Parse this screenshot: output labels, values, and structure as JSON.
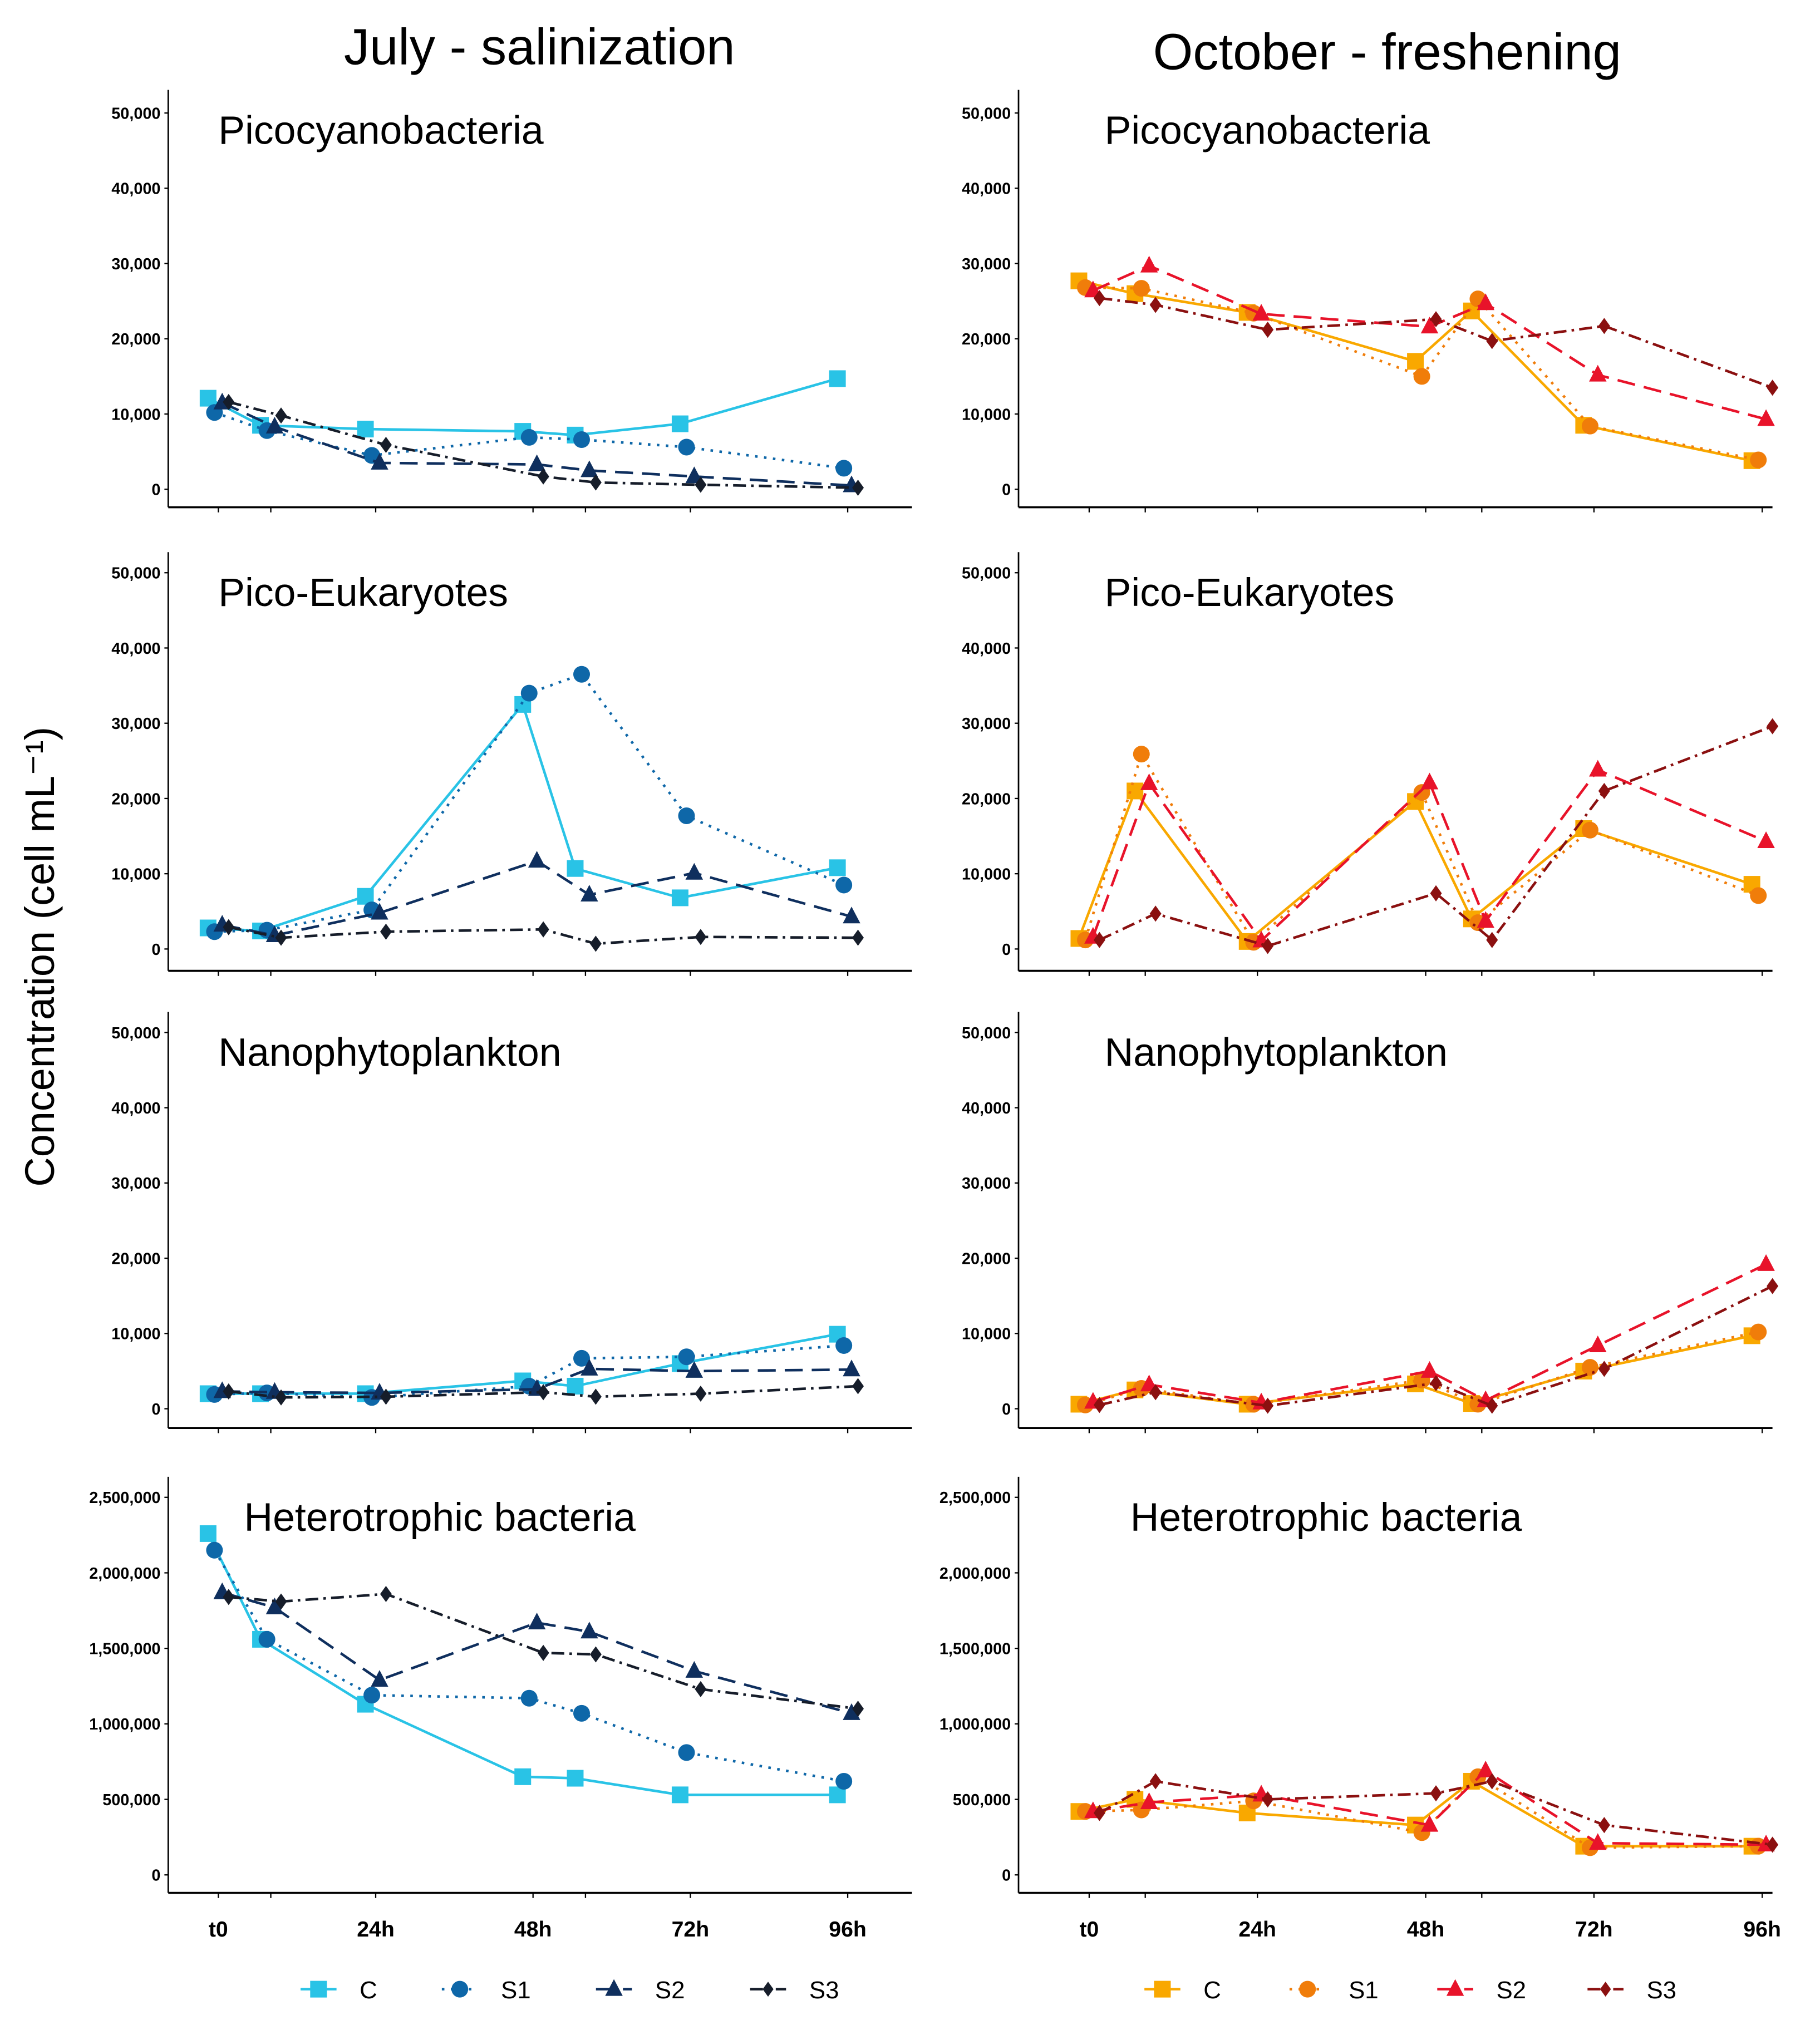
{
  "chart_data": {
    "type": "line",
    "ylabel": "Concentration (cell mL⁻¹)",
    "x": [
      0,
      8,
      24,
      48,
      56,
      72,
      96
    ],
    "xtick_values": [
      0,
      24,
      48,
      72,
      96
    ],
    "xtick_labels": [
      "t0",
      "24h",
      "48h",
      "72h",
      "96h"
    ],
    "legend_labels": [
      "C",
      "S1",
      "S2",
      "S3"
    ],
    "columns": [
      {
        "title": "July - salinization",
        "colors": [
          "#29c3e6",
          "#0e67a8",
          "#0f2f5e",
          "#161d2a"
        ],
        "panels": [
          {
            "title": "Picocyanobacteria",
            "ylim": [
              0,
              50000
            ],
            "yticks": [
              "0",
              "10,000",
              "20,000",
              "30,000",
              "40,000",
              "50,000"
            ],
            "series": [
              {
                "name": "C",
                "values": [
                  12100,
                  8500,
                  8000,
                  7700,
                  7200,
                  8700,
                  14700
                ]
              },
              {
                "name": "S1",
                "values": [
                  10200,
                  7800,
                  4500,
                  6900,
                  6600,
                  5600,
                  2800
                ]
              },
              {
                "name": "S2",
                "values": [
                  11500,
                  8300,
                  3500,
                  3300,
                  2500,
                  1700,
                  500
                ]
              },
              {
                "name": "S3",
                "values": [
                  11600,
                  9800,
                  5900,
                  1700,
                  900,
                  600,
                  200
                ]
              }
            ]
          },
          {
            "title": "Pico-Eukaryotes",
            "ylim": [
              0,
              50000
            ],
            "yticks": [
              "0",
              "10,000",
              "20,000",
              "30,000",
              "40,000",
              "50,000"
            ],
            "series": [
              {
                "name": "C",
                "values": [
                  2800,
                  2400,
                  7000,
                  32500,
                  10700,
                  6800,
                  10800
                ]
              },
              {
                "name": "S1",
                "values": [
                  2300,
                  2500,
                  5200,
                  34000,
                  36500,
                  17700,
                  8500
                ]
              },
              {
                "name": "S2",
                "values": [
                  3200,
                  1800,
                  4800,
                  11700,
                  7200,
                  10100,
                  4300
                ]
              },
              {
                "name": "S3",
                "values": [
                  2900,
                  1500,
                  2300,
                  2600,
                  700,
                  1600,
                  1500
                ]
              }
            ]
          },
          {
            "title": "Nanophytoplankton",
            "ylim": [
              0,
              50000
            ],
            "yticks": [
              "0",
              "10,000",
              "20,000",
              "30,000",
              "40,000",
              "50,000"
            ],
            "series": [
              {
                "name": "C",
                "values": [
                  2000,
                  2000,
                  2000,
                  3700,
                  3000,
                  6000,
                  9900
                ]
              },
              {
                "name": "S1",
                "values": [
                  1900,
                  2100,
                  1500,
                  3000,
                  6700,
                  6900,
                  8400
                ]
              },
              {
                "name": "S2",
                "values": [
                  2300,
                  2200,
                  2100,
                  2600,
                  5300,
                  5000,
                  5200
                ]
              },
              {
                "name": "S3",
                "values": [
                  2300,
                  1500,
                  1600,
                  2200,
                  1600,
                  2000,
                  3000
                ]
              }
            ]
          },
          {
            "title": "Heterotrophic bacteria",
            "ylim": [
              0,
              2500000
            ],
            "yticks": [
              "0",
              "500,000",
              "1,000,000",
              "1,500,000",
              "2,000,000",
              "2,500,000"
            ],
            "series": [
              {
                "name": "C",
                "values": [
                  2260000,
                  1560000,
                  1130000,
                  650000,
                  640000,
                  530000,
                  530000
                ]
              },
              {
                "name": "S1",
                "values": [
                  2150000,
                  1560000,
                  1190000,
                  1170000,
                  1070000,
                  810000,
                  620000
                ]
              },
              {
                "name": "S2",
                "values": [
                  1870000,
                  1770000,
                  1290000,
                  1670000,
                  1610000,
                  1350000,
                  1070000
                ]
              },
              {
                "name": "S3",
                "values": [
                  1840000,
                  1810000,
                  1860000,
                  1470000,
                  1460000,
                  1230000,
                  1100000
                ]
              }
            ]
          }
        ]
      },
      {
        "title": "October - freshening",
        "colors": [
          "#f9a800",
          "#f07d0a",
          "#e8132a",
          "#8b1010"
        ],
        "panels": [
          {
            "title": "Picocyanobacteria",
            "ylim": [
              0,
              50000
            ],
            "yticks": [
              "0",
              "10,000",
              "20,000",
              "30,000",
              "40,000",
              "50,000"
            ],
            "series": [
              {
                "name": "C",
                "values": [
                  27700,
                  26000,
                  23500,
                  17000,
                  23700,
                  8500,
                  3800
                ]
              },
              {
                "name": "S1",
                "values": [
                  26800,
                  26700,
                  23400,
                  15000,
                  25300,
                  8400,
                  3900
                ]
              },
              {
                "name": "S2",
                "values": [
                  26400,
                  29700,
                  23300,
                  21600,
                  24700,
                  15200,
                  9300
                ]
              },
              {
                "name": "S3",
                "values": [
                  25400,
                  24500,
                  21200,
                  22600,
                  19700,
                  21700,
                  13500
                ]
              }
            ]
          },
          {
            "title": "Pico-Eukaryotes",
            "ylim": [
              0,
              50000
            ],
            "yticks": [
              "0",
              "10,000",
              "20,000",
              "30,000",
              "40,000",
              "50,000"
            ],
            "series": [
              {
                "name": "C",
                "values": [
                  1400,
                  21000,
                  1000,
                  19600,
                  4000,
                  16000,
                  8600
                ]
              },
              {
                "name": "S1",
                "values": [
                  1200,
                  25900,
                  900,
                  20800,
                  3500,
                  15800,
                  7100
                ]
              },
              {
                "name": "S2",
                "values": [
                  1600,
                  22000,
                  1100,
                  22100,
                  3700,
                  23800,
                  14300
                ]
              },
              {
                "name": "S3",
                "values": [
                  1200,
                  4700,
                  400,
                  7400,
                  1200,
                  21000,
                  29600
                ]
              }
            ]
          },
          {
            "title": "Nanophytoplankton",
            "ylim": [
              0,
              50000
            ],
            "yticks": [
              "0",
              "10,000",
              "20,000",
              "30,000",
              "40,000",
              "50,000"
            ],
            "series": [
              {
                "name": "C",
                "values": [
                  600,
                  2500,
                  600,
                  3300,
                  700,
                  5000,
                  9700
                ]
              },
              {
                "name": "S1",
                "values": [
                  500,
                  2700,
                  600,
                  3800,
                  600,
                  5500,
                  10200
                ]
              },
              {
                "name": "S2",
                "values": [
                  900,
                  3200,
                  800,
                  5000,
                  1100,
                  8400,
                  19200
                ]
              },
              {
                "name": "S3",
                "values": [
                  500,
                  2200,
                  400,
                  3400,
                  400,
                  5300,
                  16300
                ]
              }
            ]
          },
          {
            "title": "Heterotrophic bacteria",
            "ylim": [
              0,
              2500000
            ],
            "yticks": [
              "0",
              "500,000",
              "1,000,000",
              "1,500,000",
              "2,000,000",
              "2,500,000"
            ],
            "series": [
              {
                "name": "C",
                "values": [
                  420000,
                  500000,
                  410000,
                  330000,
                  620000,
                  190000,
                  190000
                ]
              },
              {
                "name": "S1",
                "values": [
                  420000,
                  430000,
                  490000,
                  280000,
                  650000,
                  180000,
                  190000
                ]
              },
              {
                "name": "S2",
                "values": [
                  420000,
                  480000,
                  530000,
                  330000,
                  690000,
                  210000,
                  200000
                ]
              },
              {
                "name": "S3",
                "values": [
                  410000,
                  620000,
                  500000,
                  540000,
                  620000,
                  330000,
                  200000
                ]
              }
            ]
          }
        ]
      }
    ]
  }
}
